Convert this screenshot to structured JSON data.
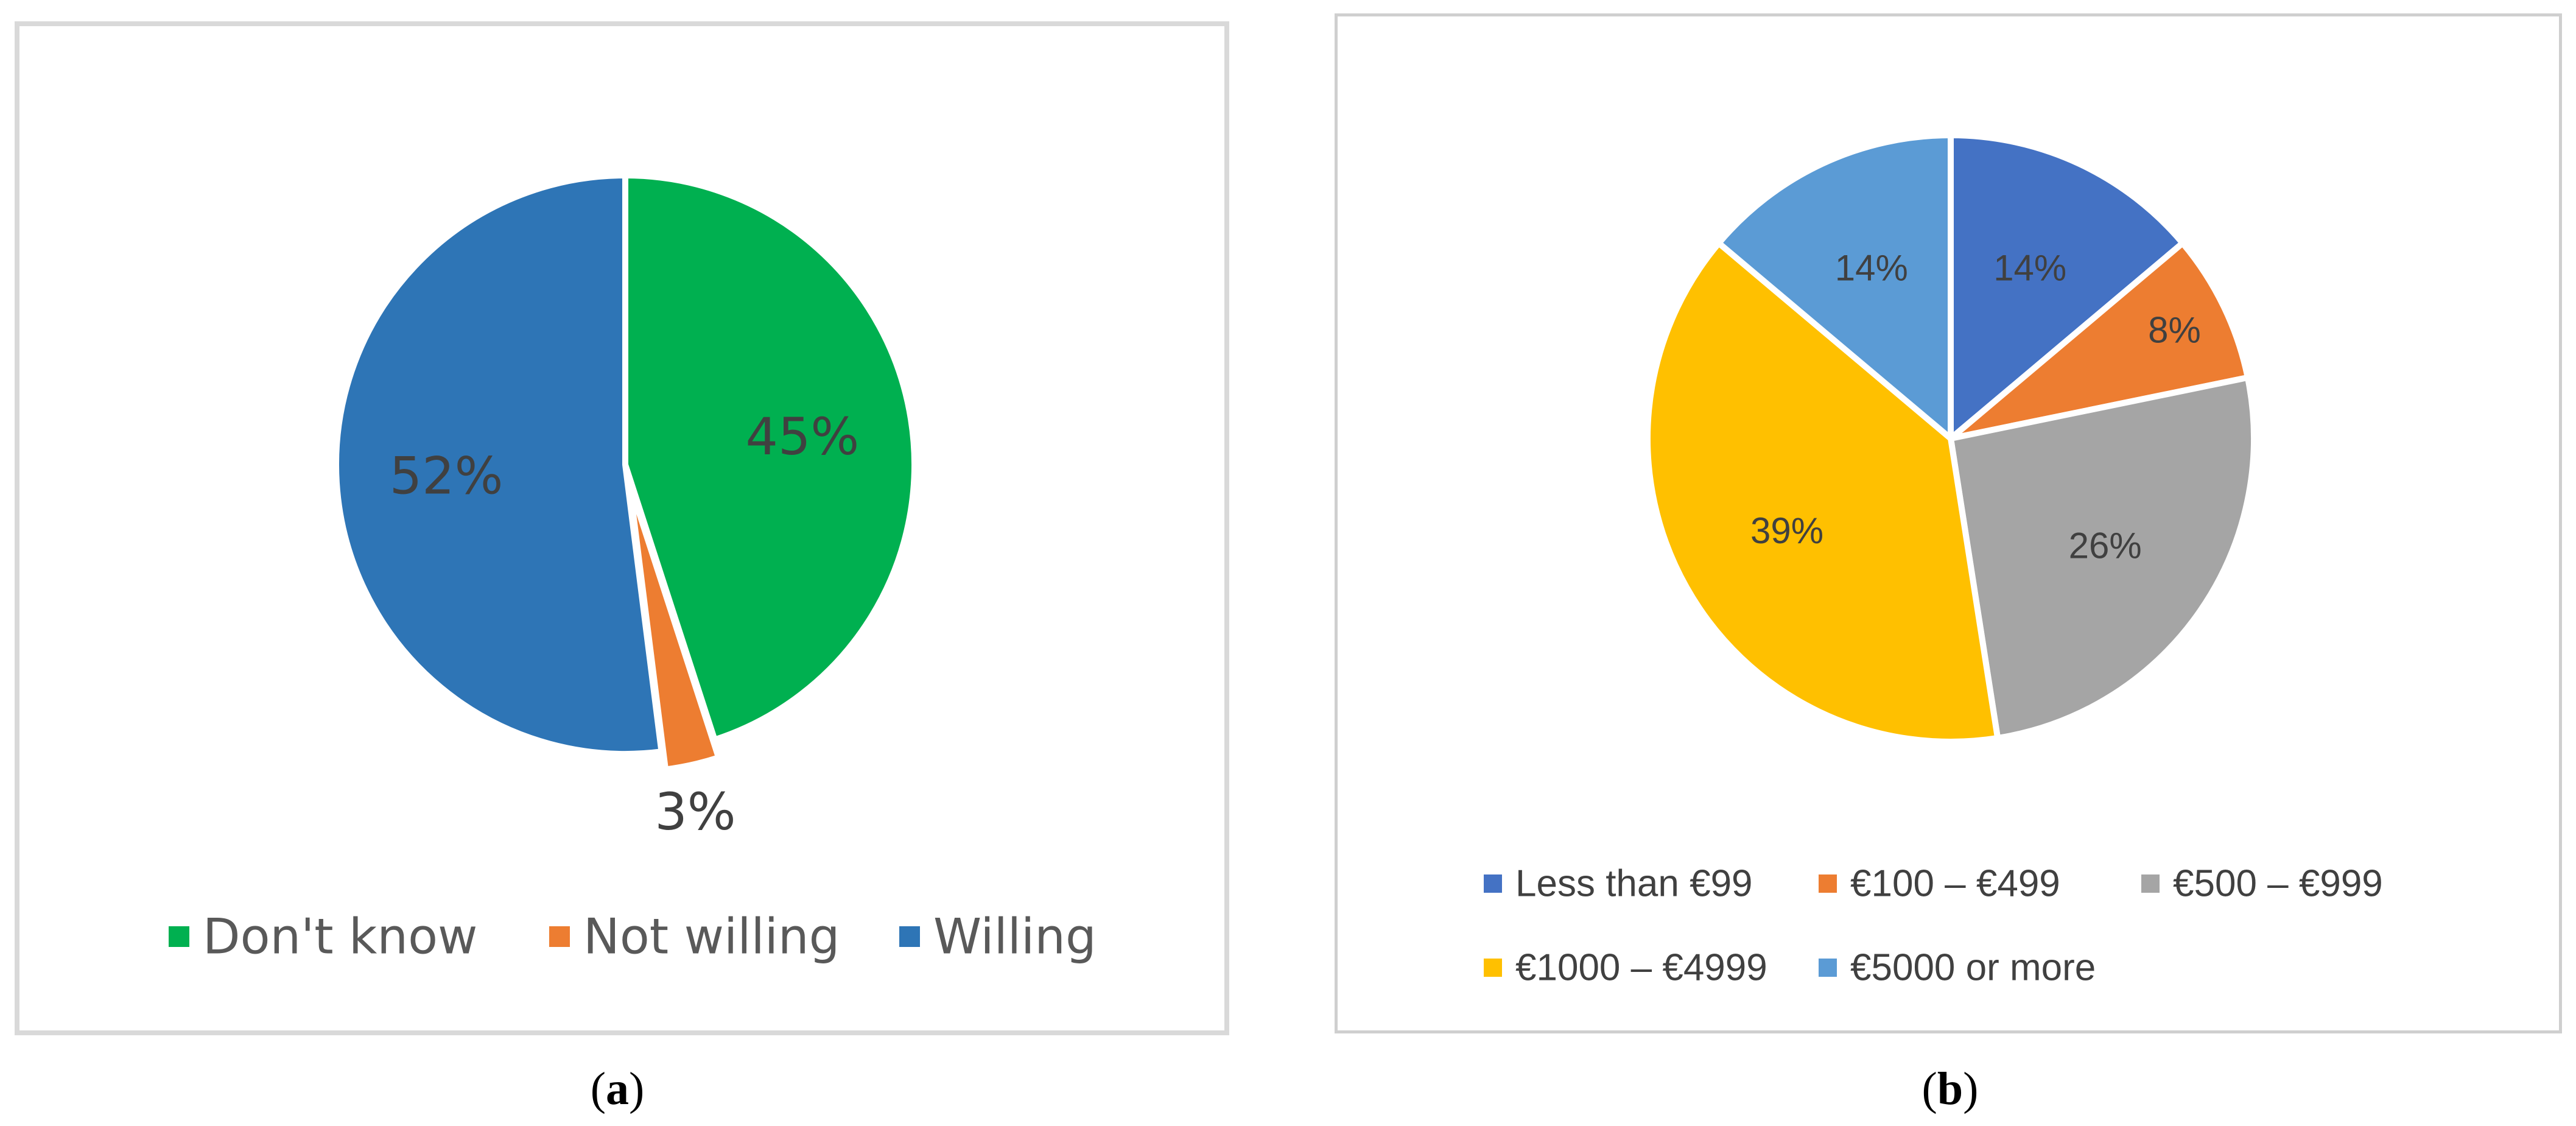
{
  "chart_data": [
    {
      "type": "pie",
      "categories": [
        "Don't know",
        "Not willing",
        "Willing"
      ],
      "values": [
        45,
        3,
        52
      ],
      "data_labels": [
        "45%",
        "3%",
        "52%"
      ],
      "colors": [
        "#00b050",
        "#ed7d31",
        "#2e75b6"
      ],
      "start_angle_deg": 0,
      "direction": "clockwise",
      "legend_position": "bottom",
      "exploded": [
        "Not willing"
      ],
      "caption": "a"
    },
    {
      "type": "pie",
      "categories": [
        "Less than €99",
        "€100 – €499",
        "€500 – €999",
        "€1000 – €4999",
        "€5000 or more"
      ],
      "values": [
        14,
        8,
        26,
        39,
        14
      ],
      "data_labels": [
        "14%",
        "8%",
        "26%",
        "39%",
        "14%"
      ],
      "colors": [
        "#4472c4",
        "#ed7d31",
        "#a5a5a5",
        "#ffc000",
        "#5b9bd5"
      ],
      "start_angle_deg": 0,
      "direction": "clockwise",
      "legend_position": "bottom",
      "caption": "b"
    }
  ]
}
